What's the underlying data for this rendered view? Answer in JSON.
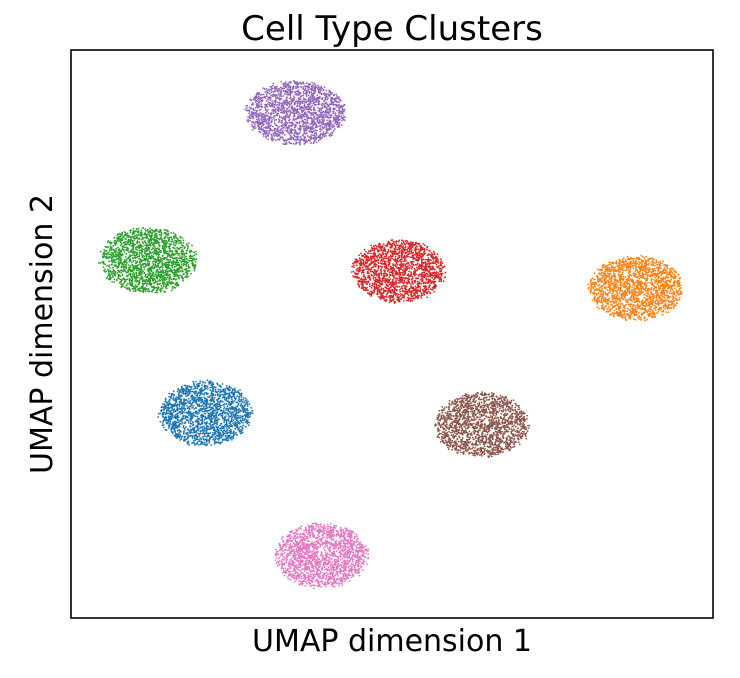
{
  "chart_data": {
    "type": "scatter",
    "title": "Cell Type Clusters",
    "xlabel": "UMAP dimension 1",
    "ylabel": "UMAP dimension 2",
    "xlim": [
      0,
      10
    ],
    "ylim": [
      0,
      10
    ],
    "grid": false,
    "legend": "none",
    "ticks": "hidden",
    "clusters": [
      {
        "center": [
          3.5,
          8.9
        ],
        "color": "#9467bd",
        "spread": [
          0.78,
          0.56
        ],
        "count": 1800
      },
      {
        "center": [
          1.2,
          6.3
        ],
        "color": "#2ca02c",
        "spread": [
          0.75,
          0.58
        ],
        "count": 1800
      },
      {
        "center": [
          5.1,
          6.1
        ],
        "color": "#d62728",
        "spread": [
          0.72,
          0.55
        ],
        "count": 1700
      },
      {
        "center": [
          8.8,
          5.8
        ],
        "color": "#ff7f0e",
        "spread": [
          0.73,
          0.57
        ],
        "count": 1700
      },
      {
        "center": [
          2.1,
          3.6
        ],
        "color": "#1f77b4",
        "spread": [
          0.72,
          0.57
        ],
        "count": 1800
      },
      {
        "center": [
          6.4,
          3.4
        ],
        "color": "#8c564b",
        "spread": [
          0.73,
          0.57
        ],
        "count": 1700
      },
      {
        "center": [
          3.9,
          1.1
        ],
        "color": "#e377c2",
        "spread": [
          0.72,
          0.57
        ],
        "count": 1700
      }
    ]
  }
}
